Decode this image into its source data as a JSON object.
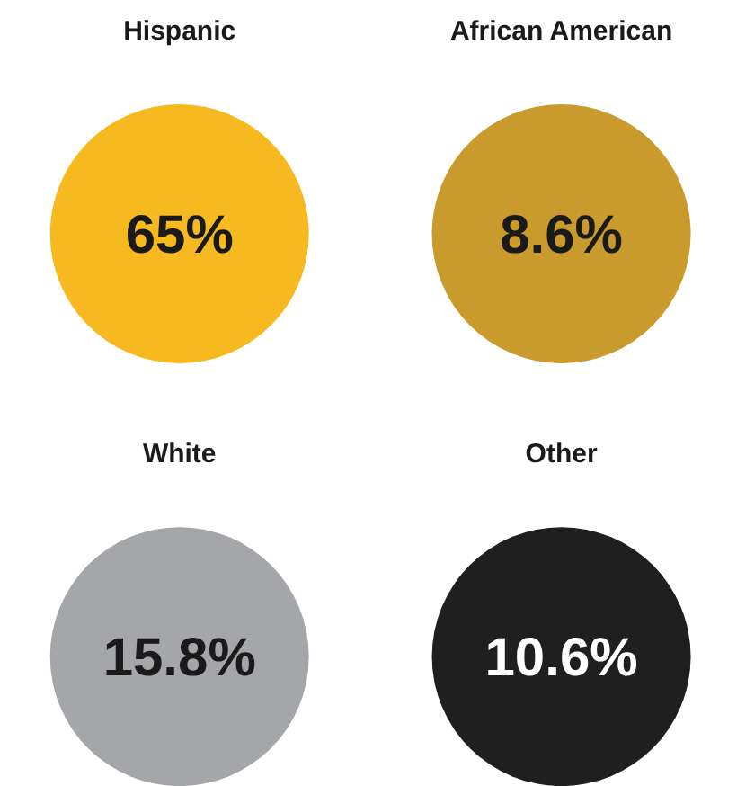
{
  "chart_data": {
    "type": "other",
    "categories": [
      "Hispanic",
      "African American",
      "White",
      "Other"
    ],
    "values": [
      65,
      8.6,
      15.8,
      10.6
    ],
    "value_labels": [
      "65%",
      "8.6%",
      "15.8%",
      "10.6%"
    ],
    "colors": [
      "#f6b920",
      "#c99a2c",
      "#a4a6a9",
      "#1f1f1f"
    ]
  }
}
